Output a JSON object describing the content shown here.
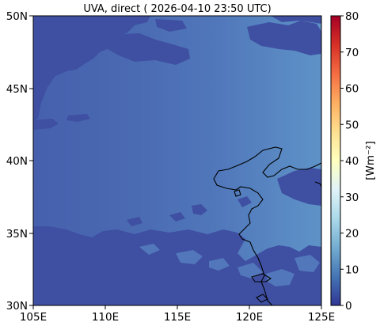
{
  "map": {
    "title": "UVA, direct ( 2026-04-10 23:50 UTC)",
    "lon_labels": [
      "105E",
      "110E",
      "115E",
      "120E",
      "125E"
    ],
    "lat_labels": [
      "50N",
      "45N",
      "40N",
      "35N",
      "30N"
    ],
    "extent": {
      "lon": [
        105,
        125
      ],
      "lat": [
        30,
        50
      ]
    },
    "field_colors": {
      "cloud": "#3f4fa2",
      "clear_west": "#4660ad",
      "clear_east": "#5c91c6"
    }
  },
  "colorbar": {
    "unit_label": "[Wm⁻²]",
    "ticks": [
      "80",
      "70",
      "60",
      "50",
      "40",
      "30",
      "20",
      "10",
      "0"
    ],
    "range": [
      0,
      80
    ],
    "colormap": "RdYlBu_r",
    "stops": [
      "#313695",
      "#4575b4",
      "#74add1",
      "#abd9e9",
      "#e0f3f8",
      "#ffffbf",
      "#fee090",
      "#fdae61",
      "#f46d43",
      "#d73027",
      "#a50026"
    ]
  }
}
